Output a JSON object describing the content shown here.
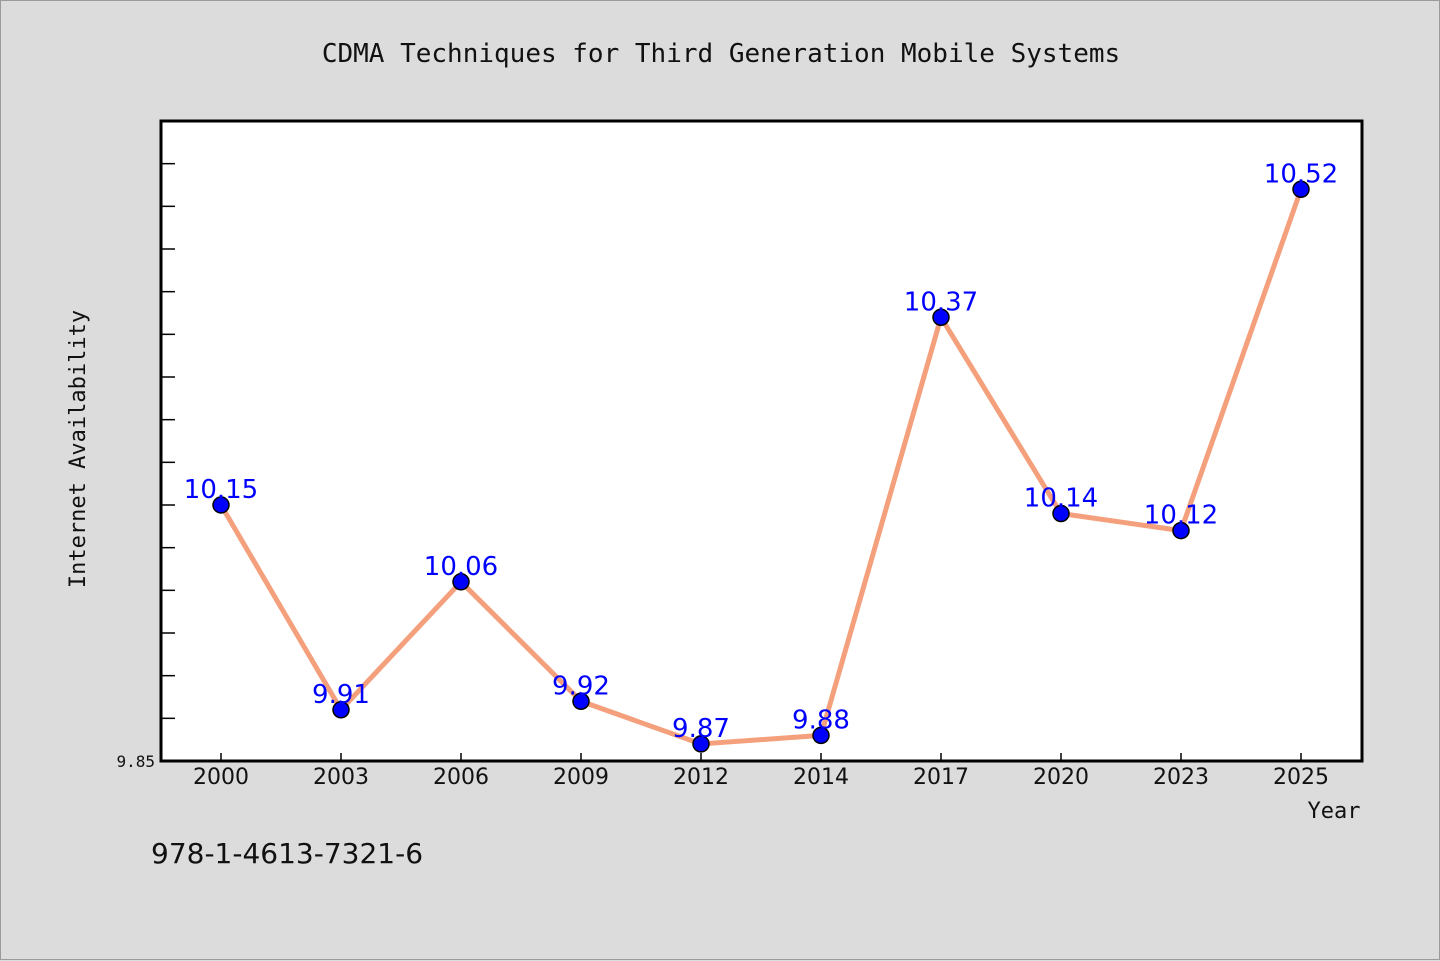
{
  "chart_data": {
    "type": "line",
    "title": "CDMA Techniques for Third Generation Mobile Systems",
    "xlabel": "Year",
    "ylabel": "Internet Availability",
    "categories": [
      "2000",
      "2003",
      "2006",
      "2009",
      "2012",
      "2014",
      "2017",
      "2020",
      "2023",
      "2025"
    ],
    "series": [
      {
        "values": [
          10.15,
          9.91,
          10.06,
          9.92,
          9.87,
          9.88,
          10.37,
          10.14,
          10.12,
          10.52
        ],
        "labels": [
          "10.15",
          "9.91",
          "10.06",
          "9.92",
          "9.87",
          "9.88",
          "10.37",
          "10.14",
          "10.12",
          "10.52"
        ],
        "line_color": "#f4a07c",
        "marker_color": "#0000ff"
      }
    ],
    "ylim": [
      9.85,
      10.6
    ],
    "ytick_labels": [
      "9.85"
    ],
    "grid": false,
    "background": "#ffffff"
  },
  "footer": {
    "isbn": "978-1-4613-7321-6"
  }
}
